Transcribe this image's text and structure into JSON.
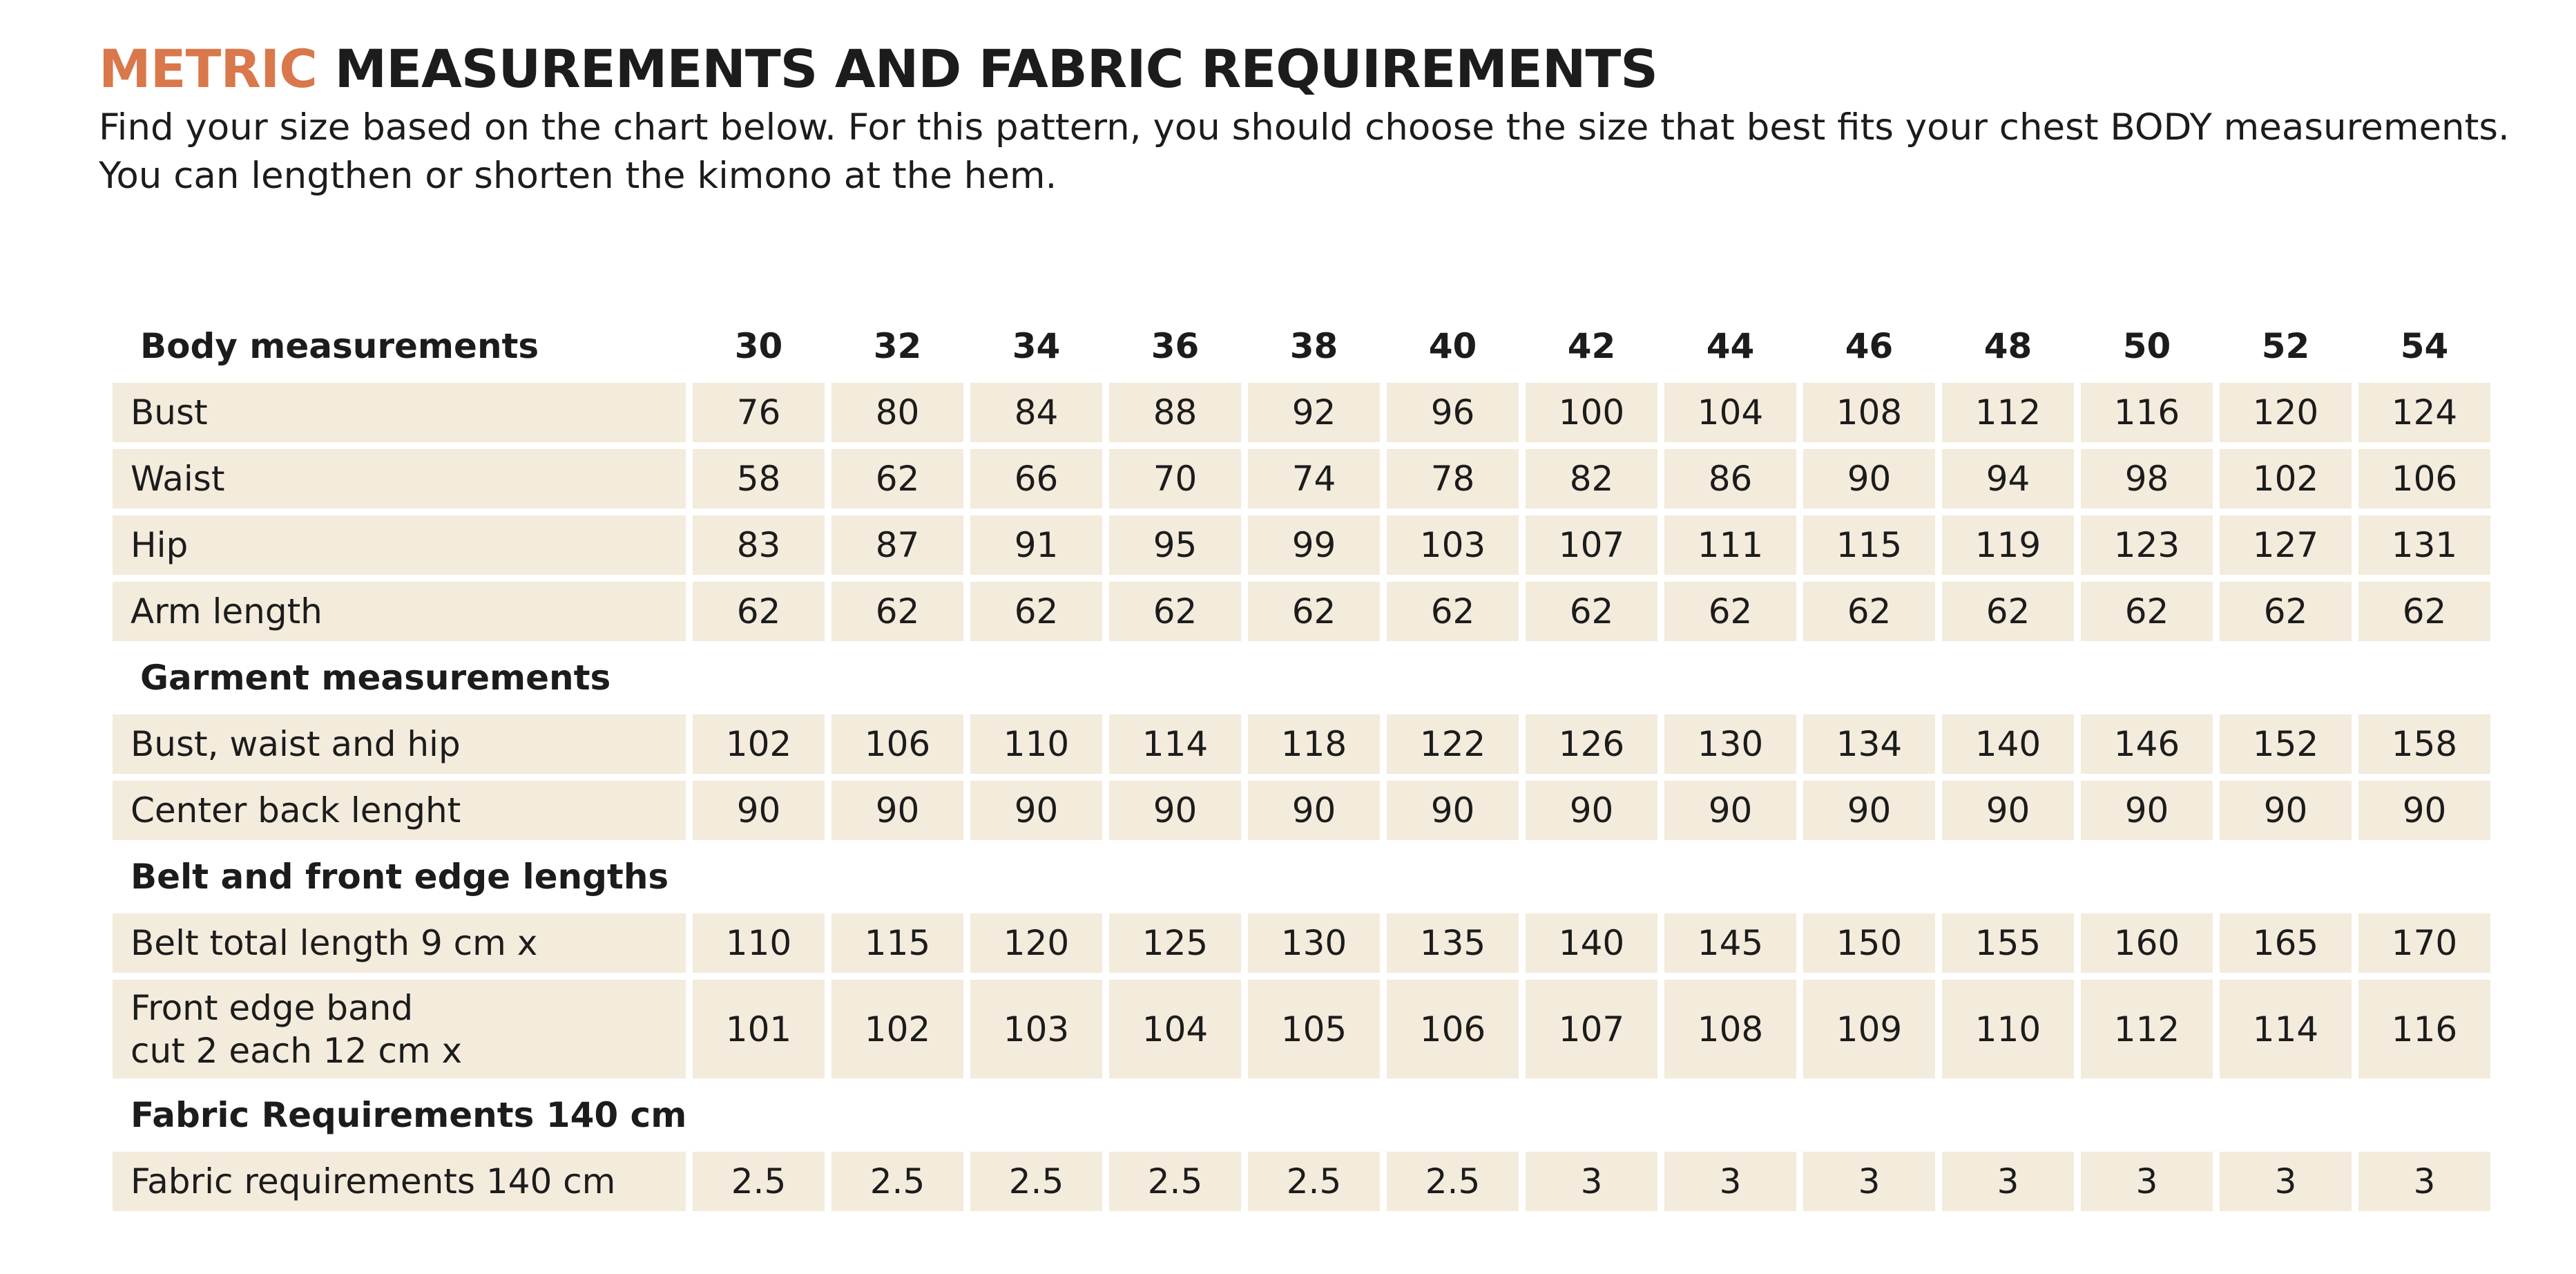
{
  "header": {
    "title_accent": "METRIC",
    "title": "MEASUREMENTS AND FABRIC REQUIREMENTS",
    "description": [
      "Find your size based on the chart below. For this pattern, you should choose the size that best fits your chest BODY measurements.",
      "You can lengthen or shorten the kimono at the hem."
    ]
  },
  "table": {
    "header": [
      "Body measurements",
      "30",
      "32",
      "34",
      "36",
      "38",
      "40",
      "42",
      "44",
      "46",
      "48",
      "50",
      "52",
      "54"
    ],
    "rows": [
      {
        "label": [
          "Bust"
        ],
        "cells": [
          "76",
          "80",
          "84",
          "88",
          "92",
          "96",
          "100",
          "104",
          "108",
          "112",
          "116",
          "120",
          "124"
        ]
      },
      {
        "label": [
          "Waist"
        ],
        "cells": [
          "58",
          "62",
          "66",
          "70",
          "74",
          "78",
          "82",
          "86",
          "90",
          "94",
          "98",
          "102",
          "106"
        ]
      },
      {
        "label": [
          "Hip"
        ],
        "cells": [
          "83",
          "87",
          "91",
          "95",
          "99",
          "103",
          "107",
          "111",
          "115",
          "119",
          "123",
          "127",
          "131"
        ]
      },
      {
        "label": [
          "Arm length"
        ],
        "cells": [
          "62",
          "62",
          "62",
          "62",
          "62",
          "62",
          "62",
          "62",
          "62",
          "62",
          "62",
          "62",
          "62"
        ]
      },
      {
        "heading": "Garment measurements"
      },
      {
        "label": [
          "Bust, waist and hip"
        ],
        "cells": [
          "102",
          "106",
          "110",
          "114",
          "118",
          "122",
          "126",
          "130",
          "134",
          "140",
          "146",
          "152",
          "158"
        ]
      },
      {
        "label": [
          "Center back lenght"
        ],
        "cells": [
          "90",
          "90",
          "90",
          "90",
          "90",
          "90",
          "90",
          "90",
          "90",
          "90",
          "90",
          "90",
          "90"
        ]
      },
      {
        "heading": "Belt and front edge lengths"
      },
      {
        "label": [
          "Belt total length 9 cm x"
        ],
        "cells": [
          "110",
          "115",
          "120",
          "125",
          "130",
          "135",
          "140",
          "145",
          "150",
          "155",
          "160",
          "165",
          "170"
        ]
      },
      {
        "label": [
          "Front edge band",
          "cut 2 each 12 cm x"
        ],
        "cells": [
          "101",
          "102",
          "103",
          "104",
          "105",
          "106",
          "107",
          "108",
          "109",
          "110",
          "112",
          "114",
          "116"
        ]
      },
      {
        "heading": "Fabric Requirements 140 cm"
      },
      {
        "label": [
          "Fabric requirements 140 cm"
        ],
        "cells": [
          "2.5",
          "2.5",
          "2.5",
          "2.5",
          "2.5",
          "2.5",
          "3",
          "3",
          "3",
          "3",
          "3",
          "3",
          "3"
        ]
      }
    ]
  }
}
